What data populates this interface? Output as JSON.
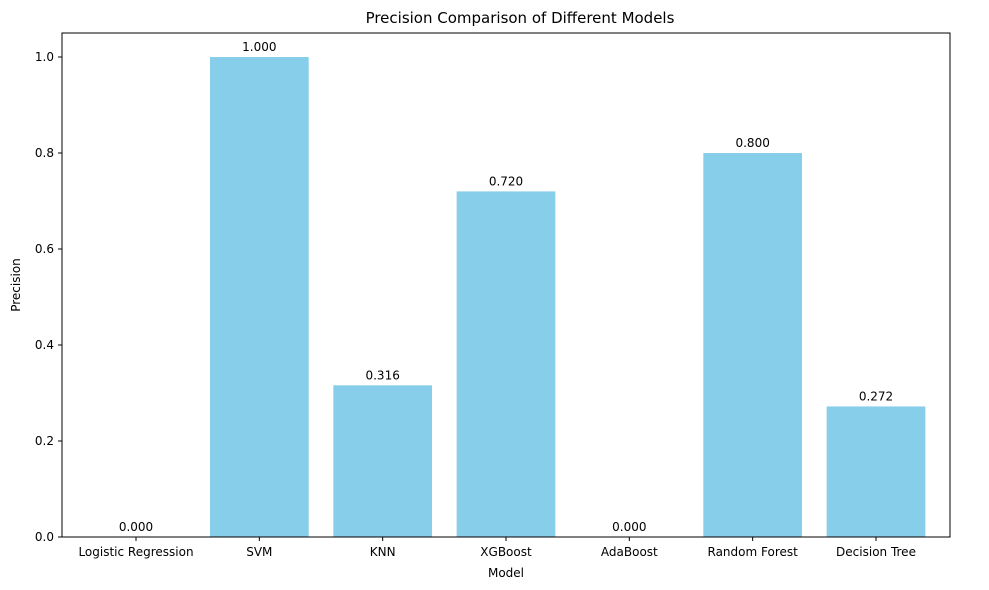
{
  "chart_data": {
    "type": "bar",
    "title": "Precision Comparison of Different Models",
    "xlabel": "Model",
    "ylabel": "Precision",
    "categories": [
      "Logistic Regression",
      "SVM",
      "KNN",
      "XGBoost",
      "AdaBoost",
      "Random Forest",
      "Decision Tree"
    ],
    "values": [
      0.0,
      1.0,
      0.316,
      0.72,
      0.0,
      0.8,
      0.272
    ],
    "value_labels": [
      "0.000",
      "1.000",
      "0.316",
      "0.720",
      "0.000",
      "0.800",
      "0.272"
    ],
    "ylim": [
      0,
      1.05
    ],
    "yticks": [
      0.0,
      0.2,
      0.4,
      0.6,
      0.8,
      1.0
    ],
    "ytick_labels": [
      "0.0",
      "0.2",
      "0.4",
      "0.6",
      "0.8",
      "1.0"
    ],
    "bar_color": "#87CEEB",
    "grid": false,
    "legend": "none"
  }
}
